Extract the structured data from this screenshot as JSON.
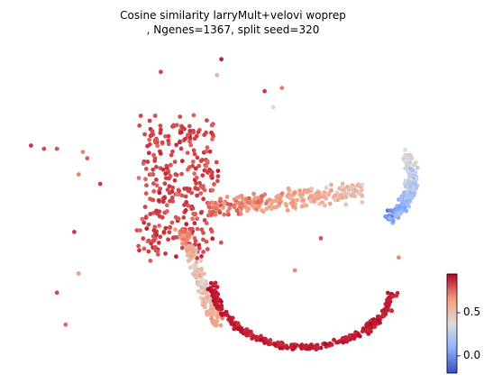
{
  "chart_data": {
    "type": "scatter",
    "title_lines": [
      "Cosine similarity larryMult+velovi woprep",
      ", Ngenes=1367, split seed=320"
    ],
    "xlabel": "",
    "ylabel": "",
    "axes_visible": false,
    "grid": false,
    "colormap": "coolwarm",
    "color_range": [
      -0.2,
      0.95
    ],
    "colorbar": {
      "position": "right",
      "ticks": [
        0.0,
        0.5
      ],
      "tick_labels": [
        "0.0",
        "0.5"
      ]
    },
    "point_count_estimate": 1367,
    "structures": [
      {
        "id": "upper-left-cluster",
        "x_range": [
          0.3,
          0.48
        ],
        "y_range": [
          0.3,
          0.62
        ],
        "mean_similarity": 0.82
      },
      {
        "id": "middle-band",
        "x_range": [
          0.45,
          0.78
        ],
        "y_range": [
          0.42,
          0.58
        ],
        "mean_similarity": 0.72
      },
      {
        "id": "right-arc-tail",
        "x_range": [
          0.76,
          0.9
        ],
        "y_range": [
          0.35,
          0.57
        ],
        "mean_similarity": 0.35
      },
      {
        "id": "descending-stem",
        "x_range": [
          0.36,
          0.46
        ],
        "y_range": [
          0.58,
          0.86
        ],
        "mean_similarity": 0.7
      },
      {
        "id": "bottom-arc",
        "x_range": [
          0.44,
          0.86
        ],
        "y_range": [
          0.7,
          0.94
        ],
        "mean_similarity": 0.9
      }
    ]
  }
}
